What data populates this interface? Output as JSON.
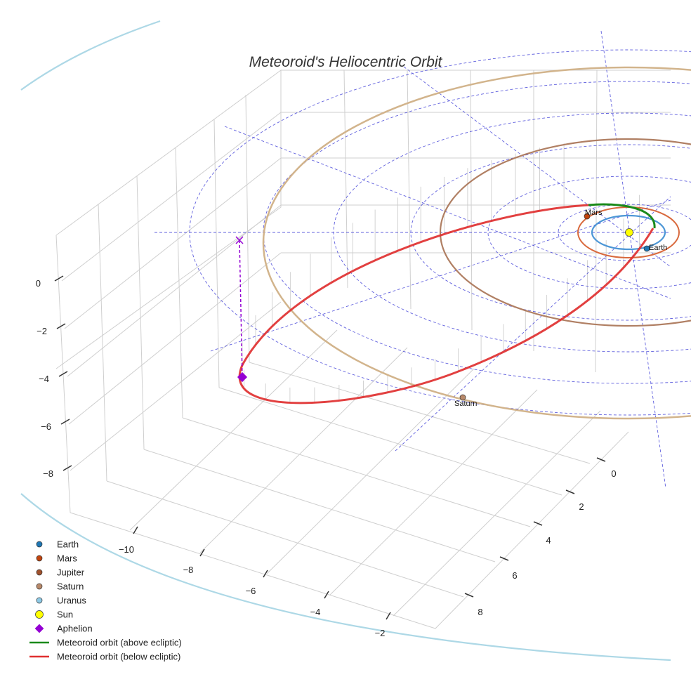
{
  "chart_data": {
    "type": "scatter3d",
    "title": "Meteoroid's Heliocentric Orbit",
    "axes": {
      "x": {
        "ticks": [
          "−10",
          "−8",
          "−6",
          "−4",
          "−2"
        ]
      },
      "y": {
        "ticks": [
          "0",
          "2",
          "4",
          "6",
          "8"
        ]
      },
      "z": {
        "ticks": [
          "0",
          "−2",
          "−4",
          "−6",
          "−8"
        ]
      }
    },
    "bodies": [
      {
        "name": "Earth",
        "label": "Earth",
        "color": "#1f77b4"
      },
      {
        "name": "Mars",
        "label": "Mars",
        "color": "#c1440e"
      },
      {
        "name": "Jupiter",
        "label": "",
        "color": "#a0522d"
      },
      {
        "name": "Saturn",
        "label": "Saturn",
        "color": "#b8896a"
      },
      {
        "name": "Uranus",
        "label": "",
        "color": "#8ecae6"
      },
      {
        "name": "Sun",
        "label": "",
        "color": "#ffff00"
      }
    ],
    "orbit_colors": {
      "earth": "#4c96d6",
      "mars": "#d96a3e",
      "jupiter": "#b07f63",
      "saturn": "#d2b48c",
      "uranus": "#add8e6",
      "above": "#1a8a1a",
      "below": "#e03030",
      "guide": "#3a3ad6",
      "aphelion": "#9400d3"
    },
    "legend": [
      {
        "label": "Earth",
        "marker": "dot",
        "color": "#1f77b4"
      },
      {
        "label": "Mars",
        "marker": "dot",
        "color": "#c1440e"
      },
      {
        "label": "Jupiter",
        "marker": "dot",
        "color": "#a0522d"
      },
      {
        "label": "Saturn",
        "marker": "dot",
        "color": "#b8896a"
      },
      {
        "label": "Uranus",
        "marker": "dot",
        "color": "#8ecae6"
      },
      {
        "label": "Sun",
        "marker": "bigdot",
        "color": "#ffff00"
      },
      {
        "label": "Aphelion",
        "marker": "diamond",
        "color": "#9400d3"
      },
      {
        "label": "Meteoroid orbit (above ecliptic)",
        "marker": "line",
        "color": "#1a8a1a"
      },
      {
        "label": "Meteoroid orbit (below ecliptic)",
        "marker": "line",
        "color": "#e03030"
      }
    ]
  }
}
